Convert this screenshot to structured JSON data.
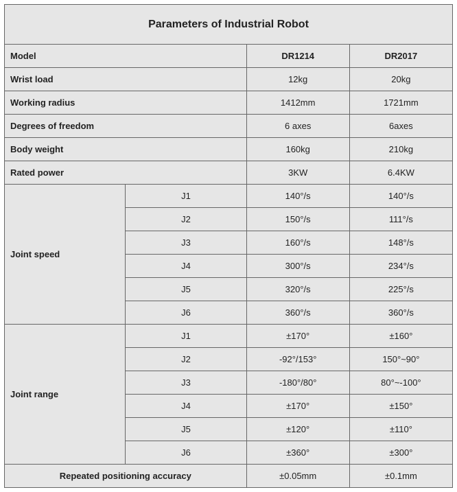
{
  "title": "Parameters of Industrial Robot",
  "headers": {
    "model": "Model",
    "c1": "DR1214",
    "c2": "DR2017"
  },
  "colors": {
    "cell_bg": "#e6e6e6",
    "border": "#666666",
    "text": "#222222"
  },
  "simple_rows": [
    {
      "label": "Wrist load",
      "v1": "12kg",
      "v2": "20kg"
    },
    {
      "label": "Working radius",
      "v1": "1412mm",
      "v2": "1721mm"
    },
    {
      "label": "Degrees of freedom",
      "v1": "6 axes",
      "v2": "6axes"
    },
    {
      "label": "Body weight",
      "v1": "160kg",
      "v2": "210kg"
    },
    {
      "label": "Rated power",
      "v1": "3KW",
      "v2": "6.4KW"
    }
  ],
  "groups": [
    {
      "label": "Joint speed",
      "rows": [
        {
          "sub": "J1",
          "v1": "140°/s",
          "v2": "140°/s"
        },
        {
          "sub": "J2",
          "v1": "150°/s",
          "v2": "111°/s"
        },
        {
          "sub": "J3",
          "v1": "160°/s",
          "v2": "148°/s"
        },
        {
          "sub": "J4",
          "v1": "300°/s",
          "v2": "234°/s"
        },
        {
          "sub": "J5",
          "v1": "320°/s",
          "v2": "225°/s"
        },
        {
          "sub": "J6",
          "v1": "360°/s",
          "v2": "360°/s"
        }
      ]
    },
    {
      "label": "Joint range",
      "rows": [
        {
          "sub": "J1",
          "v1": "±170°",
          "v2": "±160°"
        },
        {
          "sub": "J2",
          "v1": "-92°/153°",
          "v2": "150°~90°"
        },
        {
          "sub": "J3",
          "v1": "-180°/80°",
          "v2": "80°~-100°"
        },
        {
          "sub": "J4",
          "v1": "±170°",
          "v2": "±150°"
        },
        {
          "sub": "J5",
          "v1": "±120°",
          "v2": "±110°"
        },
        {
          "sub": "J6",
          "v1": "±360°",
          "v2": "±300°"
        }
      ]
    }
  ],
  "footer": {
    "label": "Repeated positioning accuracy",
    "v1": "±0.05mm",
    "v2": "±0.1mm"
  },
  "layout": {
    "col_widths_pct": [
      27,
      27,
      23,
      23
    ],
    "font_family": "Arial",
    "title_fontsize_pt": 12,
    "cell_fontsize_pt": 10
  }
}
